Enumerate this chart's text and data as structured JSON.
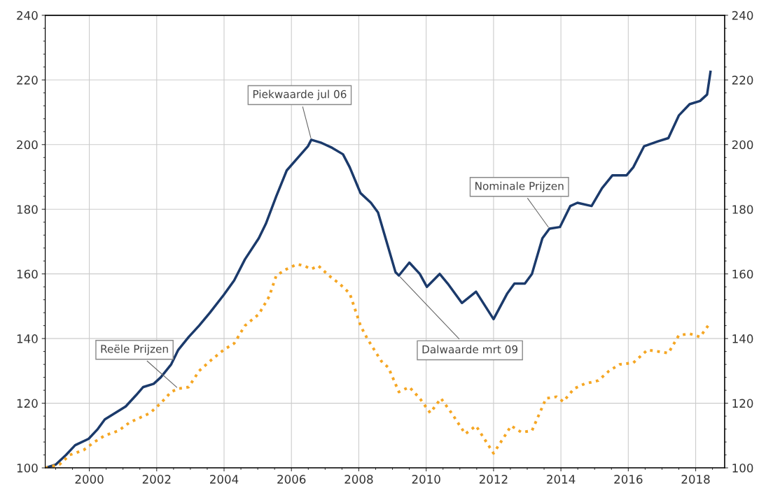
{
  "chart_data": {
    "type": "line",
    "xlim": [
      1998.69,
      2018.86
    ],
    "xticks": [
      2000,
      2002,
      2004,
      2006,
      2008,
      2010,
      2012,
      2014,
      2016,
      2018
    ],
    "ylim": [
      100,
      240
    ],
    "yticks": [
      100,
      120,
      140,
      160,
      180,
      200,
      220,
      240
    ],
    "y2lim": [
      100,
      240
    ],
    "y2ticks": [
      100,
      120,
      140,
      160,
      180,
      200,
      220,
      240
    ],
    "grid": true,
    "legend": false,
    "series": [
      {
        "color": "#1b3a6b",
        "line_style": "solid",
        "x": [
          1998.69,
          1999.0,
          1999.31,
          1999.58,
          1999.98,
          2000.25,
          2000.46,
          2000.77,
          2001.08,
          2001.39,
          2001.6,
          2001.91,
          2002.12,
          2002.43,
          2002.64,
          2002.95,
          2003.26,
          2003.58,
          2003.99,
          2004.3,
          2004.62,
          2005.03,
          2005.24,
          2005.55,
          2005.86,
          2006.28,
          2006.49,
          2006.59,
          2006.9,
          2007.21,
          2007.53,
          2007.73,
          2008.05,
          2008.36,
          2008.57,
          2008.88,
          2009.09,
          2009.19,
          2009.5,
          2009.81,
          2010.02,
          2010.4,
          2010.64,
          2011.06,
          2011.48,
          2012.0,
          2012.41,
          2012.62,
          2012.93,
          2013.14,
          2013.45,
          2013.66,
          2013.97,
          2014.28,
          2014.49,
          2014.91,
          2015.22,
          2015.53,
          2015.95,
          2016.15,
          2016.47,
          2016.88,
          2017.19,
          2017.5,
          2017.82,
          2018.13,
          2018.34,
          2018.44
        ],
        "values": [
          100,
          101,
          104,
          107,
          109,
          112,
          115,
          117,
          119,
          122.5,
          125,
          126,
          128,
          132,
          136.5,
          140.5,
          144,
          148,
          153.5,
          158,
          164.5,
          171,
          175.5,
          184,
          192,
          197,
          199.5,
          201.5,
          200.5,
          199,
          197,
          193,
          185,
          182,
          179,
          168,
          160.5,
          159.5,
          163.5,
          160,
          156,
          160,
          157,
          151,
          154.5,
          146,
          154,
          157,
          157,
          160,
          171,
          174,
          174.5,
          181,
          182,
          181,
          186.5,
          190.5,
          190.5,
          193,
          199.5,
          201,
          202,
          209,
          212.5,
          213.5,
          215.5,
          222.5
        ]
      },
      {
        "color": "#f5a623",
        "line_style": "dotted",
        "x": [
          1998.69,
          1999.11,
          1999.42,
          1999.83,
          2000.15,
          2000.46,
          2000.87,
          2001.19,
          2001.5,
          2001.81,
          2002.12,
          2002.43,
          2002.64,
          2002.95,
          2003.26,
          2003.58,
          2003.99,
          2004.3,
          2004.62,
          2005.03,
          2005.34,
          2005.55,
          2005.86,
          2006.17,
          2006.38,
          2006.59,
          2006.8,
          2007.11,
          2007.42,
          2007.73,
          2008.05,
          2008.25,
          2008.67,
          2008.88,
          2009.19,
          2009.5,
          2009.81,
          2010.12,
          2010.44,
          2010.75,
          2011.16,
          2011.48,
          2012.0,
          2012.31,
          2012.52,
          2012.83,
          2013.14,
          2013.56,
          2013.87,
          2014.07,
          2014.39,
          2014.7,
          2015.11,
          2015.43,
          2015.74,
          2016.15,
          2016.57,
          2016.88,
          2017.19,
          2017.5,
          2017.82,
          2018.13,
          2018.44
        ],
        "values": [
          100,
          101,
          104,
          105.5,
          108,
          110,
          111.5,
          114,
          115.5,
          117,
          120,
          123.5,
          124.5,
          125,
          130,
          133,
          136.5,
          138.5,
          144,
          147.5,
          153,
          159.5,
          161.5,
          163,
          162.5,
          161.5,
          162.5,
          159.5,
          157,
          154,
          144,
          140,
          133,
          131,
          123.5,
          125,
          121.5,
          117,
          121.5,
          117,
          110.5,
          113,
          104.5,
          109.5,
          113,
          111,
          111.5,
          121.5,
          122,
          120.5,
          124.5,
          126,
          127,
          130,
          132,
          132.5,
          136.5,
          136,
          135.5,
          141,
          141.5,
          140.5,
          145
        ]
      }
    ],
    "annotations": [
      {
        "text": "Piekwaarde jul 06",
        "x": 2006.59,
        "y": 201.5
      },
      {
        "text": "Dalwaarde mrt 09",
        "x": 2009.19,
        "y": 159.5
      },
      {
        "text": "Nominale Prijzen",
        "x": 2013.66,
        "y": 174
      },
      {
        "text": "Reële Prijzen",
        "x": 2002.64,
        "y": 124.5
      }
    ]
  }
}
